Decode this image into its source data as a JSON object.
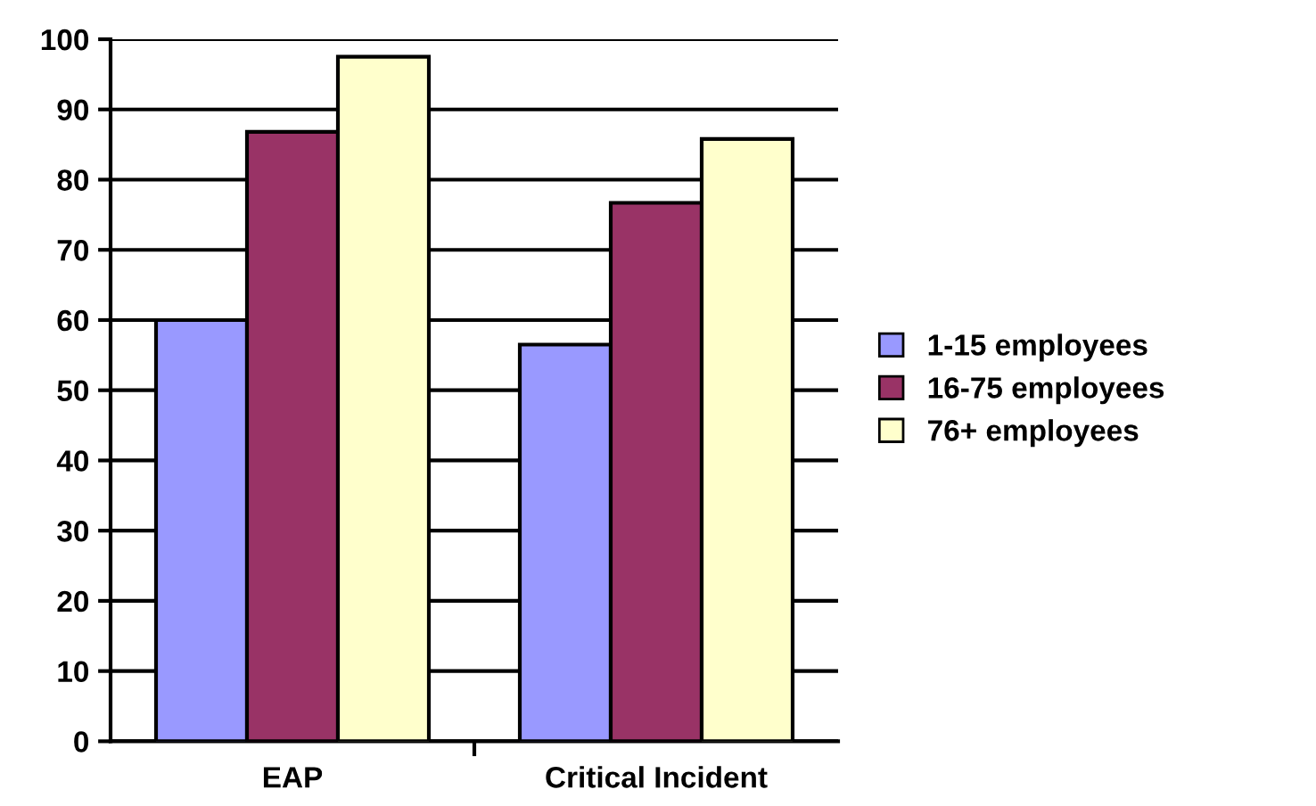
{
  "chart_data": {
    "type": "bar",
    "categories": [
      "EAP",
      "Critical Incident"
    ],
    "series": [
      {
        "name": "1-15 employees",
        "color": "#9999ff",
        "values": [
          60,
          56.5
        ]
      },
      {
        "name": "16-75 employees",
        "color": "#993366",
        "values": [
          86.8,
          76.7
        ]
      },
      {
        "name": "76+ employees",
        "color": "#ffffcc",
        "values": [
          97.5,
          85.8
        ]
      }
    ],
    "ylim": [
      0,
      100
    ],
    "yticks": [
      0,
      10,
      20,
      30,
      40,
      50,
      60,
      70,
      80,
      90,
      100
    ],
    "grid": "y",
    "legend": "right"
  }
}
